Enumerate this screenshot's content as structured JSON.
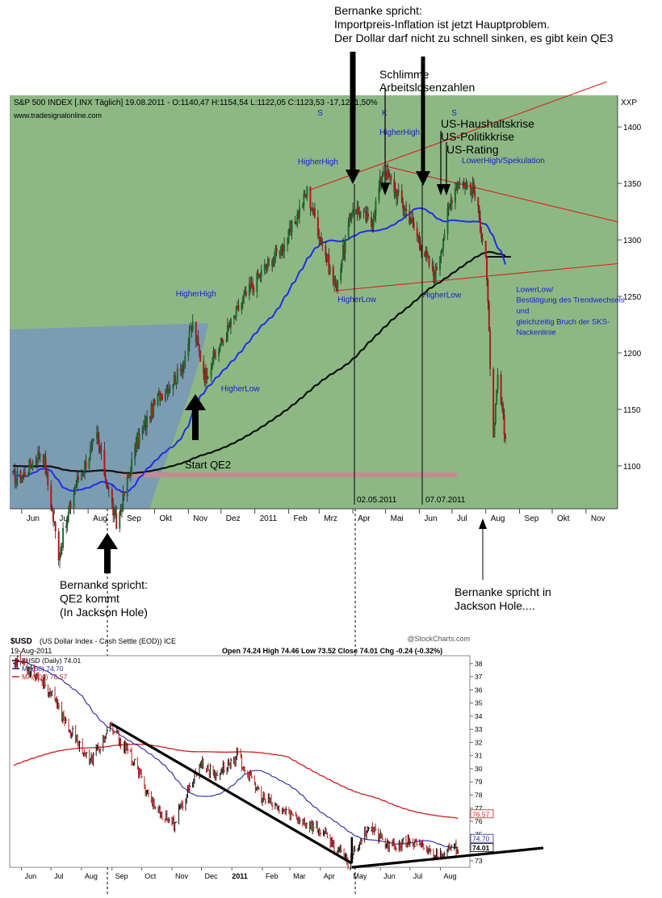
{
  "annotations": {
    "top_lines": [
      "Bernanke spricht:",
      "Importpreis-Inflation ist jetzt Hauptproblem.",
      "Der Dollar darf nicht zu schnell sinken, es gibt kein QE3"
    ],
    "schlimme_lines": [
      "Schlimme",
      "Arbeitslosenzahlen"
    ],
    "us_lines": [
      "US-Haushaltskrise",
      "US-Politikkrise",
      "US-Rating"
    ],
    "qe2_lines": [
      "Bernanke spricht:",
      "QE2 kommt",
      "(In Jackson Hole)"
    ],
    "jackson_lines": [
      "Bernanke spricht in",
      "Jackson Hole...."
    ]
  },
  "sp500": {
    "header": "S&P 500 INDEX [.INX  Täglich] 19.08.2011 - O:1140,47 H:1154,54 L:1122,05 C:1123,53 -17,12 -1,50%",
    "source": "www.tradesignalonline.com",
    "axis_label": "XXP",
    "labels": {
      "higherhigh_1": "HigherHigh",
      "higherhigh_2": "HigherHigh",
      "higherhigh_3": "HigherHigh",
      "lowerhigh": "LowerHigh/Spekulation",
      "higherlow_1": "HigherLow",
      "higherlow_2": "HigherLow",
      "higherlow_3": "HigherLow",
      "start_qe2": "Start QE2",
      "date_1": "02.05.2011",
      "date_2": "07.07.2011",
      "s1": "S",
      "k": "K",
      "s2": "S",
      "lowerlow": [
        "LowerLow/",
        "Bestätigung des Trendwechsels",
        "und",
        "gleichzeitig Bruch der SKS-",
        "Nackenlinie"
      ]
    },
    "x_ticks": [
      "Jun",
      "Jul",
      "Aug",
      "Sep",
      "Okt",
      "Nov",
      "Dez",
      "2011",
      "Feb",
      "Mrz",
      "Apr",
      "Mai",
      "Jun",
      "Jul",
      "Aug",
      "Sep",
      "Okt",
      "Nov"
    ],
    "y_ticks": [
      "1400",
      "1350",
      "1300",
      "1250",
      "1200",
      "1150",
      "1100"
    ]
  },
  "usd": {
    "title_sym": "$USD",
    "title_rest": "(US Dollar Index - Cash Settle (EOD)) ICE",
    "source": "@StockCharts.com",
    "date": "19-Aug-2011",
    "ohlc": "Open 74.24  High 74.46  Low 73.52  Close 74.01  Chg -0.24 (-0.32%)",
    "legend": [
      "$USD (Daily) 74.01",
      "MA(50) 74.70",
      "MA(200) 76.57"
    ],
    "x_ticks": [
      "Jun",
      "Jul",
      "Aug",
      "Sep",
      "Oct",
      "Nov",
      "Dec",
      "2011",
      "Feb",
      "Mar",
      "Apr",
      "May",
      "Jun",
      "Jul",
      "Aug"
    ],
    "y_ticks": [
      "38",
      "37",
      "36",
      "35",
      "34",
      "33",
      "32",
      "31",
      "30",
      "79",
      "78",
      "77",
      "76",
      "75",
      "74",
      "73"
    ],
    "value_tags": [
      "76.57",
      "74.70",
      "74.01"
    ]
  },
  "colors": {
    "green_bg": "#8db884",
    "blue_zone": "#7c9cb1",
    "ma50_sp": "#1f2ee6",
    "ma200_sp": "#111111",
    "usd_ma50": "#26269e",
    "usd_ma200": "#cc1c1c",
    "trend_red": "#d82020",
    "label_blue": "#1a1ad0",
    "qe2_band": "#c08c93"
  },
  "chart_data": [
    {
      "type": "line",
      "title": "S&P 500 INDEX [.INX  Täglich] 19.08.2011",
      "xlabel": "",
      "ylabel": "",
      "ylim": [
        1062,
        1428
      ],
      "x": [
        "2010-06-01",
        "2010-06-20",
        "2010-07-05",
        "2010-07-20",
        "2010-08-09",
        "2010-08-27",
        "2010-09-15",
        "2010-10-05",
        "2010-10-25",
        "2010-11-05",
        "2010-11-16",
        "2010-12-01",
        "2010-12-20",
        "2011-01-10",
        "2011-01-31",
        "2011-02-18",
        "2011-03-16",
        "2011-04-01",
        "2011-04-18",
        "2011-04-29",
        "2011-05-23",
        "2011-06-15",
        "2011-07-01",
        "2011-07-07",
        "2011-07-21",
        "2011-08-01",
        "2011-08-08",
        "2011-08-12",
        "2011-08-19"
      ],
      "series": [
        {
          "name": "",
          "values": [
            1090,
            1115,
            1022,
            1082,
            1125,
            1047,
            1122,
            1162,
            1183,
            1225,
            1180,
            1208,
            1245,
            1275,
            1300,
            1343,
            1257,
            1330,
            1314,
            1364,
            1320,
            1267,
            1340,
            1354,
            1344,
            1287,
            1119,
            1178,
            1123
          ]
        }
      ]
    },
    {
      "type": "line",
      "title": "$USD (US Dollar Index - Cash Settle (EOD)) ICE",
      "xlabel": "",
      "ylabel": "",
      "ylim": [
        72.5,
        88.6
      ],
      "x": [
        "2010-06-01",
        "2010-06-25",
        "2010-07-20",
        "2010-08-10",
        "2010-08-31",
        "2010-09-20",
        "2010-10-15",
        "2010-11-03",
        "2010-11-30",
        "2010-12-15",
        "2011-01-07",
        "2011-02-01",
        "2011-03-01",
        "2011-04-01",
        "2011-04-29",
        "2011-05-20",
        "2011-06-10",
        "2011-07-01",
        "2011-07-25",
        "2011-08-19"
      ],
      "series": [
        {
          "name": "$USD (Daily)",
          "values": [
            88.2,
            86.5,
            83.0,
            80.5,
            83.2,
            81.0,
            77.0,
            75.8,
            80.5,
            79.5,
            81.0,
            77.7,
            76.5,
            75.3,
            72.9,
            75.7,
            74.0,
            74.5,
            73.5,
            74.0
          ]
        }
      ]
    }
  ]
}
